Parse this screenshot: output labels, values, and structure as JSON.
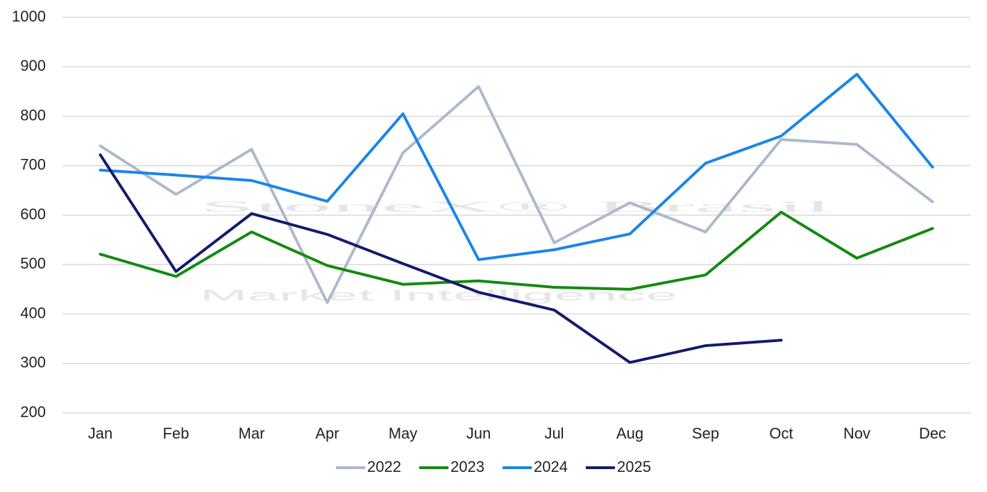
{
  "chart_data": {
    "type": "line",
    "watermark": [
      "StoneX® Brasil",
      "Market Intelligence"
    ],
    "categories": [
      "Jan",
      "Feb",
      "Mar",
      "Apr",
      "May",
      "Jun",
      "Jul",
      "Aug",
      "Sep",
      "Oct",
      "Nov",
      "Dec"
    ],
    "series": [
      {
        "name": "2022",
        "color": "#adb9ca",
        "values": [
          740,
          642,
          733,
          423,
          726,
          860,
          544,
          625,
          566,
          753,
          743,
          627
        ]
      },
      {
        "name": "2023",
        "color": "#138a11",
        "values": [
          521,
          476,
          566,
          498,
          460,
          467,
          454,
          450,
          479,
          606,
          513,
          573
        ]
      },
      {
        "name": "2024",
        "color": "#1a85e8",
        "values": [
          691,
          681,
          670,
          628,
          805,
          510,
          530,
          562,
          705,
          760,
          885,
          697
        ]
      },
      {
        "name": "2025",
        "color": "#141a6c",
        "values": [
          722,
          486,
          603,
          561,
          502,
          444,
          408,
          302,
          336,
          347,
          null,
          null
        ]
      }
    ],
    "ylim": [
      200,
      1000
    ],
    "yticks": [
      200,
      300,
      400,
      500,
      600,
      700,
      800,
      900,
      1000
    ],
    "grid": true,
    "legend": "bottom"
  }
}
